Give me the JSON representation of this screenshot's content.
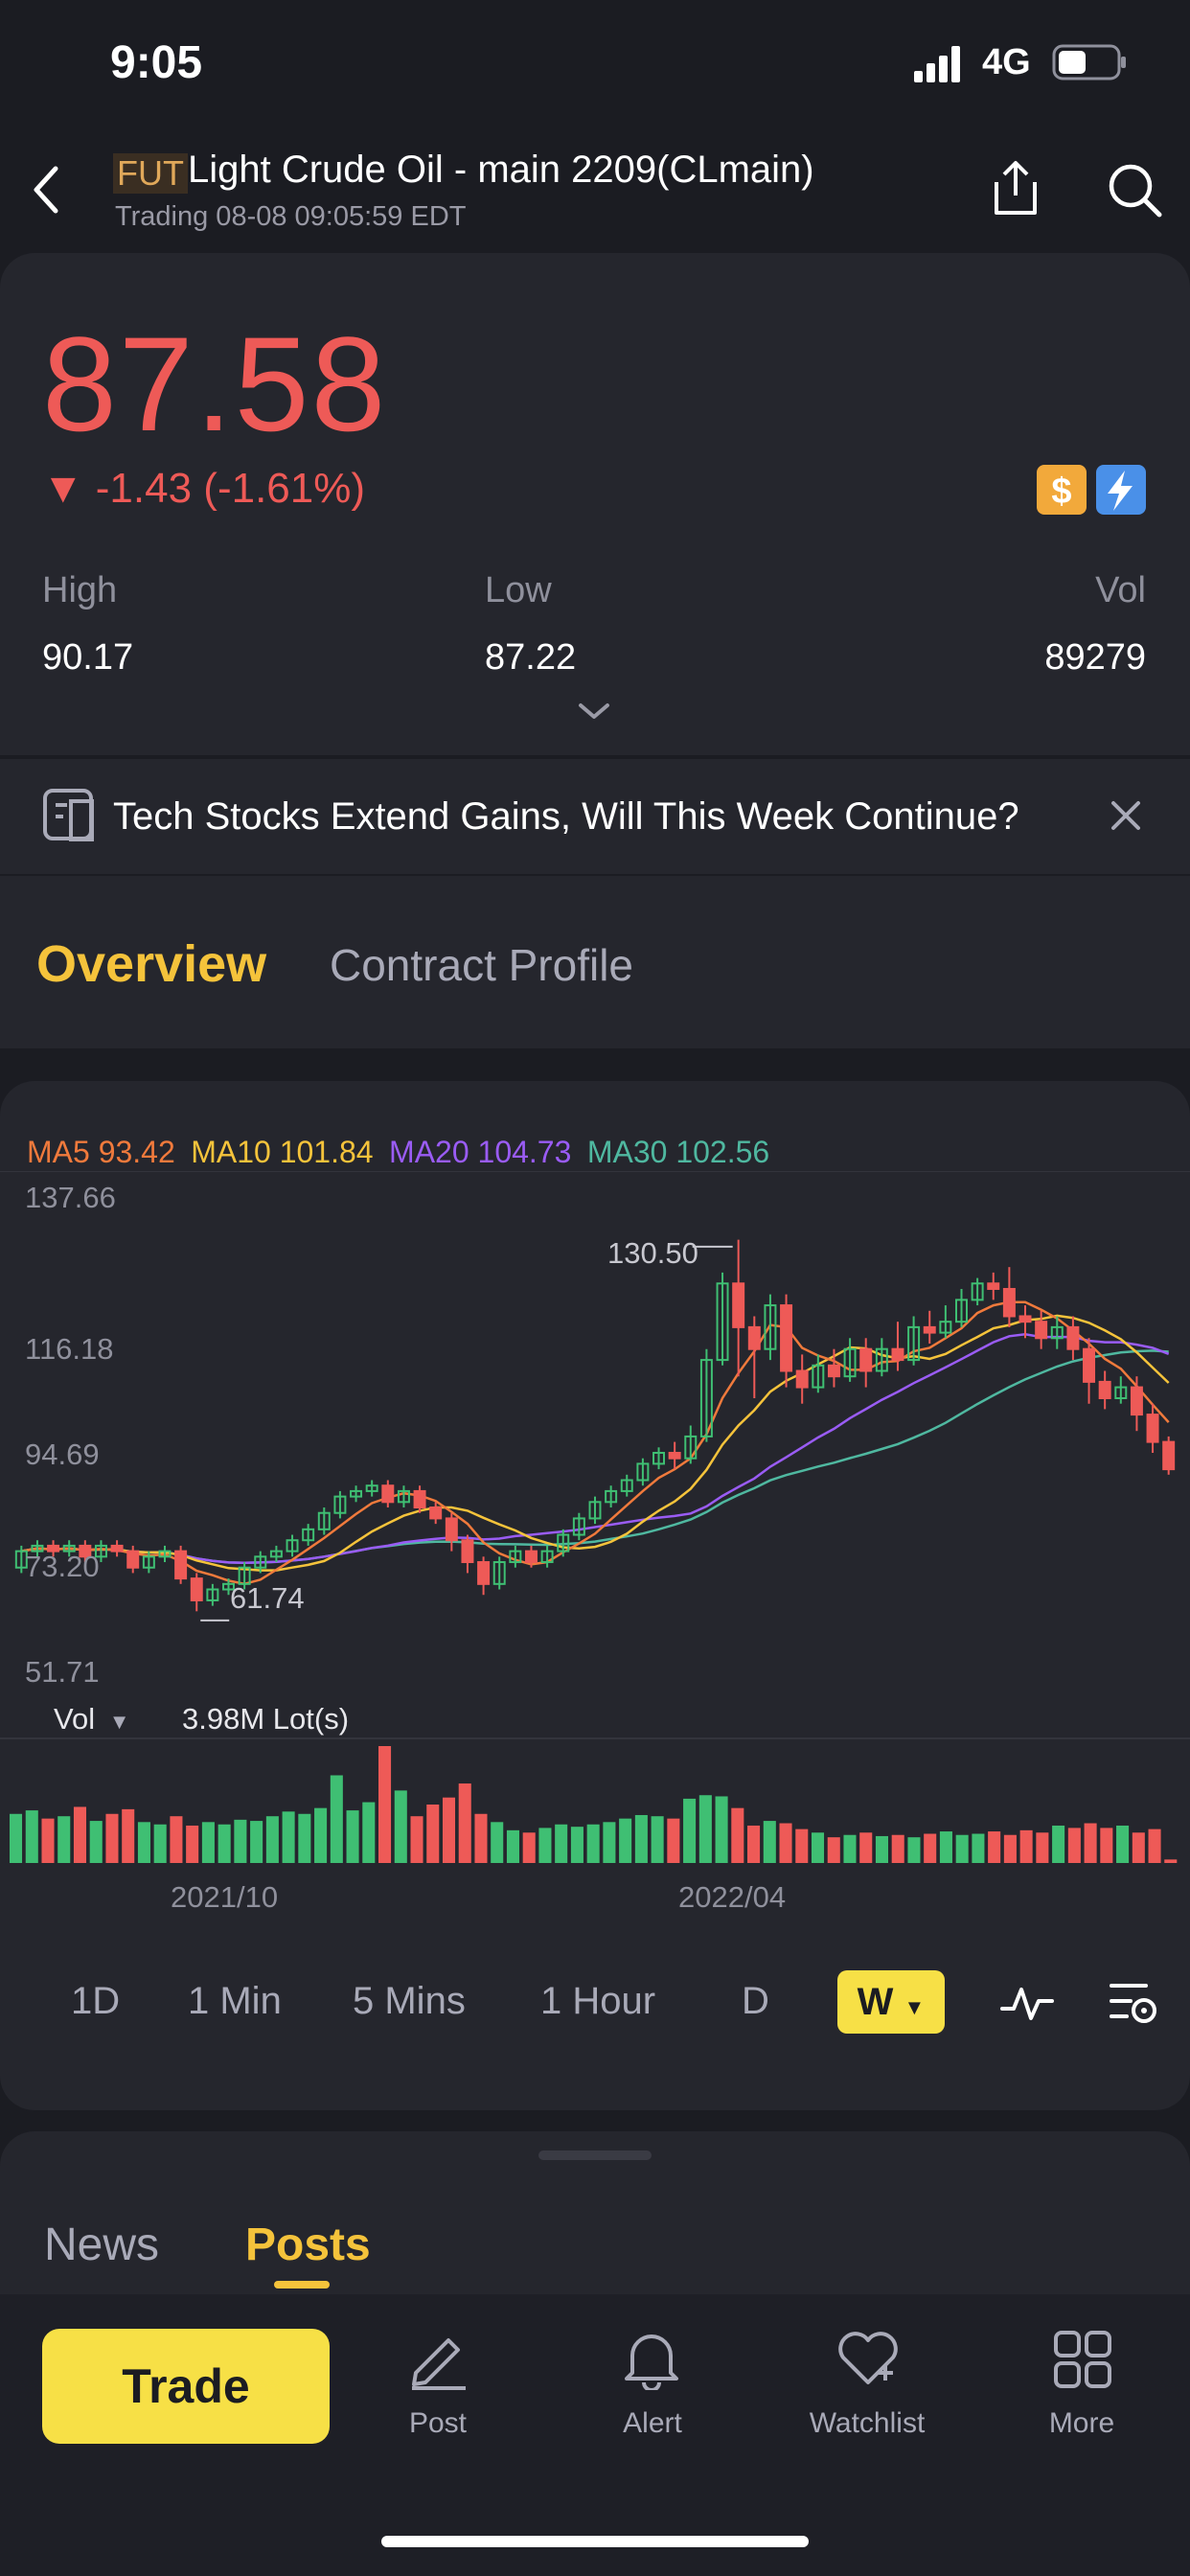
{
  "status_bar": {
    "time": "9:05",
    "network": "4G"
  },
  "header": {
    "badge": "FUT",
    "title": "Light  Crude Oil - main 2209(CLmain)",
    "subtitle": "Trading 08-08 09:05:59 EDT"
  },
  "quote": {
    "price": "87.58",
    "change": "▼ -1.43 (-1.61%)",
    "stats": {
      "high_label": "High",
      "high_value": "90.17",
      "low_label": "Low",
      "low_value": "87.22",
      "vol_label": "Vol",
      "vol_value": "89279"
    }
  },
  "news_banner": {
    "text": "Tech Stocks Extend Gains, Will This Week Continue?"
  },
  "tabs": {
    "overview": "Overview",
    "contract_profile": "Contract Profile"
  },
  "chart": {
    "ma_legend": [
      {
        "label": "MA5 93.42",
        "color": "#f07a3c"
      },
      {
        "label": "MA10 101.84",
        "color": "#f5c33b"
      },
      {
        "label": "MA20 104.73",
        "color": "#9a5cf5"
      },
      {
        "label": "MA30 102.56",
        "color": "#4fb8a0"
      }
    ],
    "y_labels": [
      "137.66",
      "116.18",
      "94.69",
      "73.20",
      "51.71"
    ],
    "max_marker": "130.50",
    "min_marker": "61.74",
    "vol_label": "Vol",
    "vol_value": "3.98M Lot(s)",
    "x_labels": [
      "2021/10",
      "2022/04"
    ],
    "periods": [
      "1D",
      "1 Min",
      "5 Mins",
      "1 Hour",
      "D"
    ],
    "active_period": "W"
  },
  "chart_data": {
    "type": "candlestick",
    "y_range": [
      51.71,
      137.66
    ],
    "highlights": {
      "max": 130.5,
      "min": 61.74
    },
    "moving_averages": {
      "MA5": 93.42,
      "MA10": 101.84,
      "MA20": 104.73,
      "MA30": 102.56
    },
    "candles": [
      [
        70,
        73,
        69,
        74
      ],
      [
        73,
        74,
        72,
        75
      ],
      [
        74,
        73,
        72,
        75
      ],
      [
        73,
        74,
        72,
        75
      ],
      [
        74,
        72,
        71,
        75
      ],
      [
        72,
        74,
        71,
        75
      ],
      [
        74,
        73,
        72,
        75
      ],
      [
        73,
        70,
        69,
        74
      ],
      [
        70,
        72,
        69,
        73
      ],
      [
        72,
        73,
        71,
        74
      ],
      [
        73,
        68,
        67,
        74
      ],
      [
        68,
        64,
        62,
        69
      ],
      [
        64,
        66,
        63,
        67
      ],
      [
        66,
        67,
        65,
        68
      ],
      [
        67,
        70,
        66,
        71
      ],
      [
        70,
        72,
        69,
        73
      ],
      [
        72,
        73,
        71,
        74
      ],
      [
        73,
        75,
        72,
        76
      ],
      [
        75,
        77,
        74,
        78
      ],
      [
        77,
        80,
        76,
        81
      ],
      [
        80,
        83,
        79,
        84
      ],
      [
        83,
        84,
        82,
        85
      ],
      [
        84,
        85,
        83,
        86
      ],
      [
        85,
        82,
        81,
        86
      ],
      [
        82,
        84,
        81,
        85
      ],
      [
        84,
        81,
        80,
        85
      ],
      [
        81,
        79,
        78,
        82
      ],
      [
        79,
        75,
        73,
        80
      ],
      [
        75,
        71,
        69,
        76
      ],
      [
        71,
        67,
        65,
        72
      ],
      [
        67,
        71,
        66,
        72
      ],
      [
        71,
        73,
        70,
        74
      ],
      [
        73,
        71,
        70,
        74
      ],
      [
        71,
        73,
        70,
        74
      ],
      [
        73,
        76,
        72,
        77
      ],
      [
        76,
        79,
        75,
        80
      ],
      [
        79,
        82,
        78,
        83
      ],
      [
        82,
        84,
        81,
        85
      ],
      [
        84,
        86,
        83,
        87
      ],
      [
        86,
        89,
        85,
        90
      ],
      [
        89,
        91,
        88,
        92
      ],
      [
        91,
        90,
        88,
        93
      ],
      [
        90,
        94,
        89,
        96
      ],
      [
        94,
        108,
        93,
        110
      ],
      [
        108,
        122,
        107,
        124
      ],
      [
        122,
        114,
        105,
        130
      ],
      [
        114,
        110,
        101,
        116
      ],
      [
        110,
        118,
        108,
        120
      ],
      [
        118,
        106,
        103,
        120
      ],
      [
        106,
        103,
        100,
        109
      ],
      [
        103,
        107,
        102,
        109
      ],
      [
        107,
        105,
        103,
        110
      ],
      [
        105,
        110,
        104,
        112
      ],
      [
        110,
        106,
        103,
        112
      ],
      [
        106,
        110,
        105,
        112
      ],
      [
        110,
        108,
        106,
        115
      ],
      [
        108,
        114,
        107,
        116
      ],
      [
        114,
        113,
        111,
        117
      ],
      [
        113,
        115,
        112,
        118
      ],
      [
        115,
        119,
        114,
        121
      ],
      [
        119,
        122,
        118,
        123
      ],
      [
        122,
        121,
        119,
        124
      ],
      [
        121,
        116,
        114,
        125
      ],
      [
        116,
        115,
        112,
        118
      ],
      [
        115,
        112,
        110,
        117
      ],
      [
        112,
        114,
        110,
        116
      ],
      [
        114,
        110,
        108,
        116
      ],
      [
        110,
        104,
        100,
        112
      ],
      [
        104,
        101,
        99,
        106
      ],
      [
        101,
        103,
        100,
        105
      ],
      [
        103,
        98,
        95,
        105
      ],
      [
        98,
        93,
        91,
        100
      ],
      [
        93,
        88,
        87,
        94
      ]
    ],
    "volumes": [
      0.42,
      0.45,
      0.38,
      0.4,
      0.48,
      0.36,
      0.42,
      0.46,
      0.35,
      0.33,
      0.4,
      0.32,
      0.35,
      0.33,
      0.37,
      0.36,
      0.4,
      0.44,
      0.42,
      0.47,
      0.75,
      0.45,
      0.52,
      1.0,
      0.62,
      0.4,
      0.5,
      0.56,
      0.68,
      0.42,
      0.35,
      0.28,
      0.26,
      0.3,
      0.33,
      0.31,
      0.33,
      0.35,
      0.38,
      0.41,
      0.4,
      0.38,
      0.55,
      0.58,
      0.57,
      0.47,
      0.32,
      0.36,
      0.34,
      0.29,
      0.26,
      0.22,
      0.24,
      0.26,
      0.23,
      0.24,
      0.22,
      0.25,
      0.27,
      0.24,
      0.25,
      0.27,
      0.24,
      0.28,
      0.26,
      0.32,
      0.3,
      0.34,
      0.3,
      0.32,
      0.26,
      0.29,
      0.03
    ]
  },
  "bottom_sheet": {
    "tabs": [
      "News",
      "Posts"
    ],
    "active": "Posts"
  },
  "bottom_bar": {
    "trade": "Trade",
    "items": [
      "Post",
      "Alert",
      "Watchlist",
      "More"
    ]
  }
}
